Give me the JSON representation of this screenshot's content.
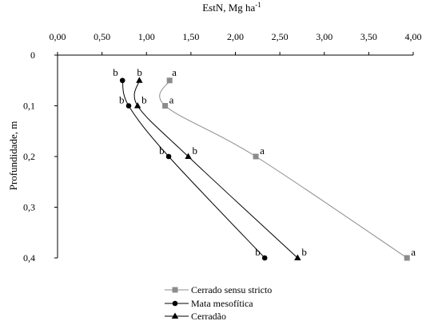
{
  "chart_data": {
    "type": "line",
    "x_title": "EstN, Mg ha",
    "x_title_sup": "-1",
    "y_title": "Profundidade, m",
    "x_axis_position": "top",
    "y_axis_inverted": true,
    "xlim": [
      0,
      4.0
    ],
    "ylim": [
      0,
      0.4
    ],
    "x_ticks": [
      "0,00",
      "0,50",
      "1,00",
      "1,50",
      "2,00",
      "2,50",
      "3,00",
      "3,50",
      "4,00"
    ],
    "x_tick_values": [
      0,
      0.5,
      1.0,
      1.5,
      2.0,
      2.5,
      3.0,
      3.5,
      4.0
    ],
    "y_ticks": [
      "0",
      "0,1",
      "0,2",
      "0,3",
      "0,4"
    ],
    "y_tick_values": [
      0,
      0.1,
      0.2,
      0.3,
      0.4
    ],
    "grid": false,
    "legend_position": "bottom-center",
    "series": [
      {
        "name": "Cerrado sensu stricto",
        "marker": "square",
        "color": "#8c8c8c",
        "points": [
          {
            "x": 1.26,
            "y": 0.05,
            "label": "a"
          },
          {
            "x": 1.21,
            "y": 0.1,
            "label": "a"
          },
          {
            "x": 2.23,
            "y": 0.2,
            "label": "a"
          },
          {
            "x": 3.93,
            "y": 0.4,
            "label": "a"
          }
        ]
      },
      {
        "name": "Mata mesofítica",
        "marker": "circle",
        "color": "#000000",
        "points": [
          {
            "x": 0.73,
            "y": 0.05,
            "label": "b"
          },
          {
            "x": 0.8,
            "y": 0.1,
            "label": "b"
          },
          {
            "x": 1.25,
            "y": 0.2,
            "label": "b"
          },
          {
            "x": 2.33,
            "y": 0.4,
            "label": "b"
          }
        ]
      },
      {
        "name": "Cerradão",
        "marker": "triangle",
        "color": "#000000",
        "points": [
          {
            "x": 0.92,
            "y": 0.05,
            "label": "b"
          },
          {
            "x": 0.9,
            "y": 0.1,
            "label": "b"
          },
          {
            "x": 1.47,
            "y": 0.2,
            "label": "b"
          },
          {
            "x": 2.7,
            "y": 0.4,
            "label": "b"
          }
        ]
      }
    ]
  }
}
